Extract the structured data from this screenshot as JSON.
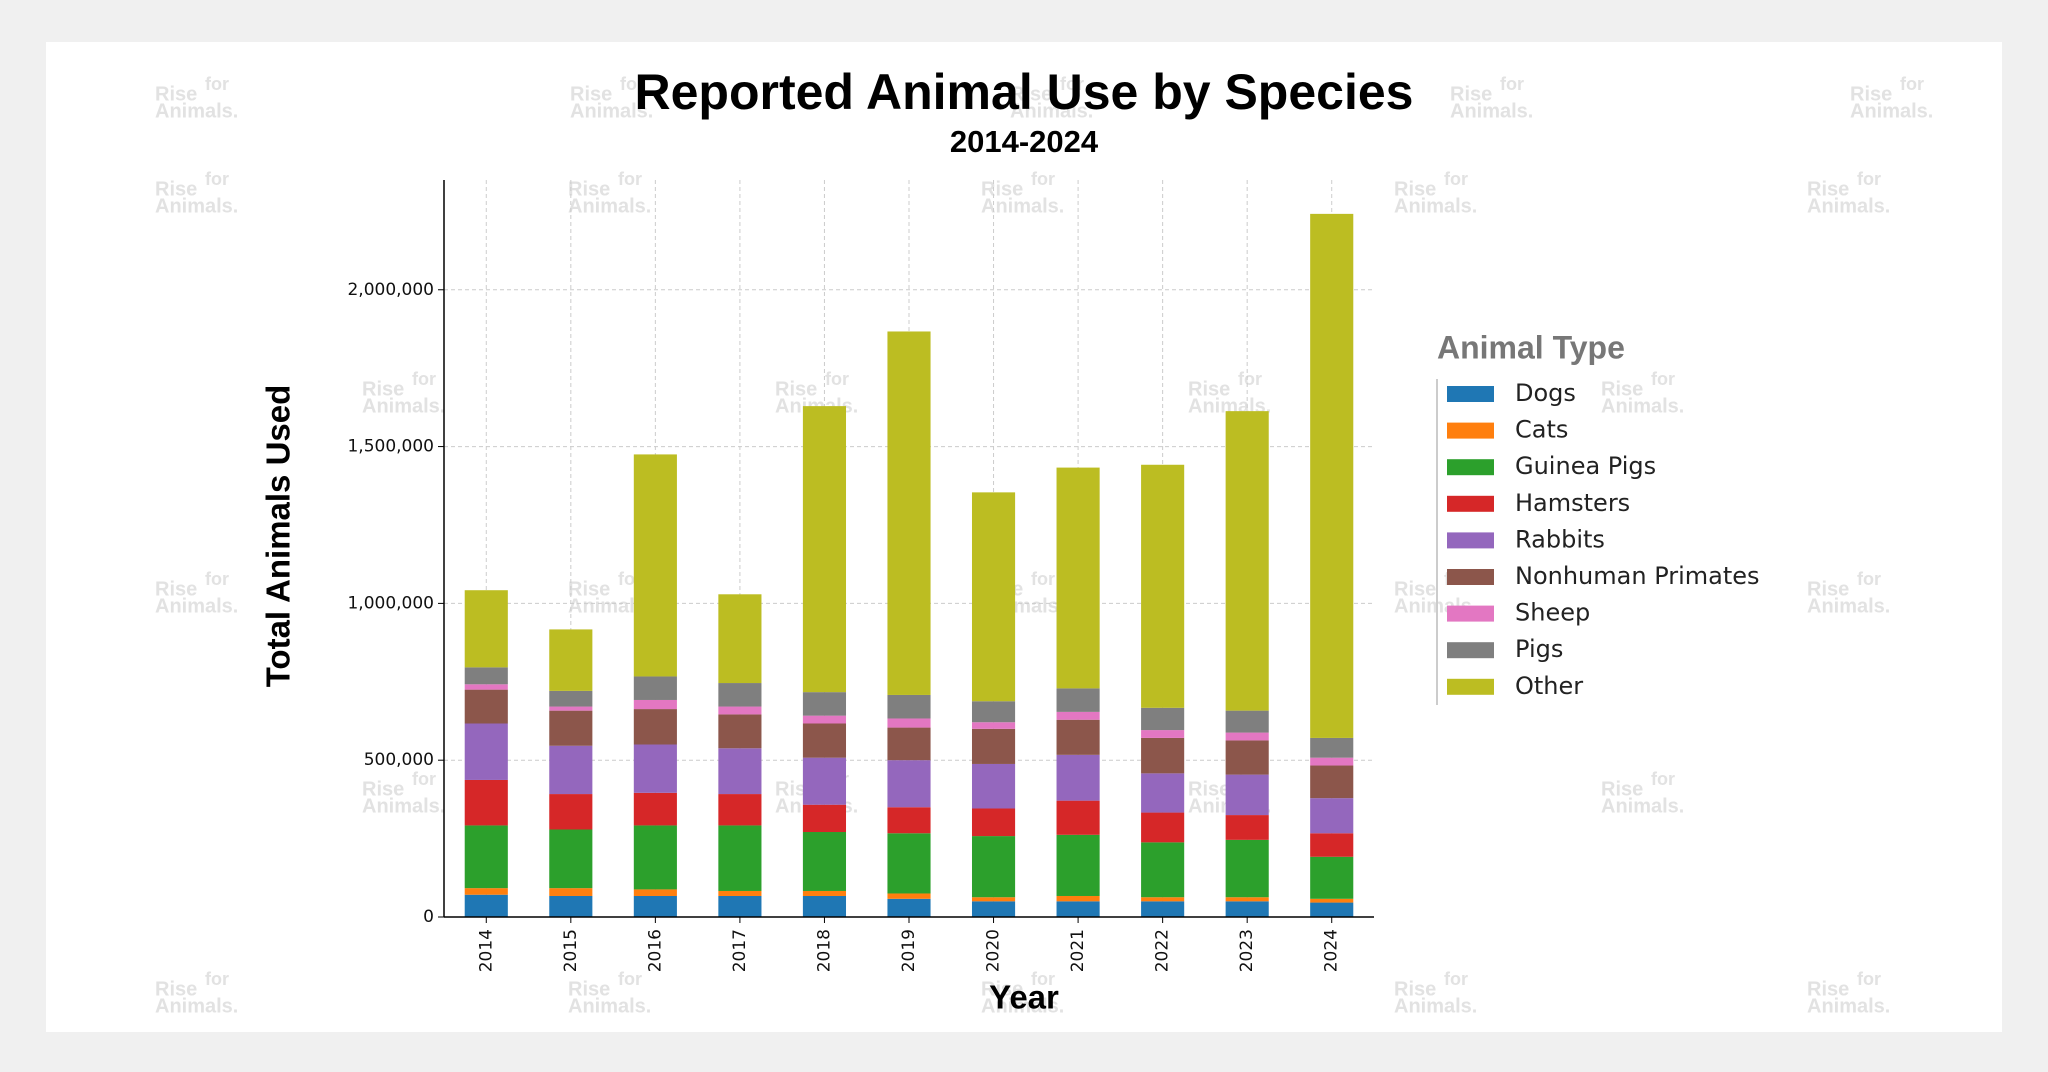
{
  "chart_data": {
    "type": "stacked-bar",
    "title": "Reported Animal Use by Species",
    "subtitle": "2014-2024",
    "x_label": "Year",
    "y_label": "Total Animals Used",
    "legend_title": "Animal Type",
    "legend_position": "right",
    "grid": true,
    "categories": [
      "2014",
      "2015",
      "2016",
      "2017",
      "2018",
      "2019",
      "2020",
      "2021",
      "2022",
      "2023",
      "2024"
    ],
    "ylim": [
      0,
      2350000
    ],
    "yticks": [
      0,
      {
        "value": 500000,
        "label": "500,000"
      },
      {
        "value": 1000000,
        "label": "1,000,000"
      },
      {
        "value": 1500000,
        "label": "1,500,000"
      },
      {
        "value": 2000000,
        "label": "2,000,000"
      }
    ],
    "series": [
      {
        "name": "Dogs",
        "color": "#1f77b4",
        "values": [
          71000,
          67000,
          67000,
          67000,
          67000,
          58000,
          50000,
          50000,
          50000,
          50000,
          46000
        ]
      },
      {
        "name": "Cats",
        "color": "#ff7f0e",
        "values": [
          21000,
          25000,
          21000,
          16000,
          16000,
          17000,
          13000,
          17000,
          13000,
          13000,
          12000
        ]
      },
      {
        "name": "Guinea Pigs",
        "color": "#2ca02c",
        "values": [
          200000,
          187000,
          204000,
          209000,
          188000,
          192000,
          195000,
          195000,
          175000,
          183000,
          134000
        ]
      },
      {
        "name": "Hamsters",
        "color": "#d62728",
        "values": [
          145000,
          113000,
          104000,
          100000,
          87000,
          83000,
          88000,
          109000,
          95000,
          79000,
          75000
        ]
      },
      {
        "name": "Rabbits",
        "color": "#9467bd",
        "values": [
          180000,
          154000,
          154000,
          146000,
          150000,
          150000,
          142000,
          146000,
          125000,
          129000,
          112000
        ]
      },
      {
        "name": "Nonhuman Primates",
        "color": "#8c564b",
        "values": [
          108000,
          112000,
          113000,
          108000,
          109000,
          104000,
          112000,
          112000,
          113000,
          109000,
          104000
        ]
      },
      {
        "name": "Sheep",
        "color": "#e377c2",
        "values": [
          17000,
          13000,
          29000,
          25000,
          25000,
          29000,
          21000,
          25000,
          25000,
          25000,
          25000
        ]
      },
      {
        "name": "Pigs",
        "color": "#7f7f7f",
        "values": [
          54000,
          50000,
          75000,
          75000,
          75000,
          75000,
          67000,
          75000,
          71000,
          70000,
          63000
        ]
      },
      {
        "name": "Other",
        "color": "#bcbd22",
        "values": [
          246000,
          196000,
          708000,
          283000,
          912000,
          1159000,
          666000,
          704000,
          775000,
          955000,
          1671000
        ]
      }
    ]
  },
  "watermark": {
    "rise": "Rise",
    "for": "for",
    "animals": "Animals."
  }
}
